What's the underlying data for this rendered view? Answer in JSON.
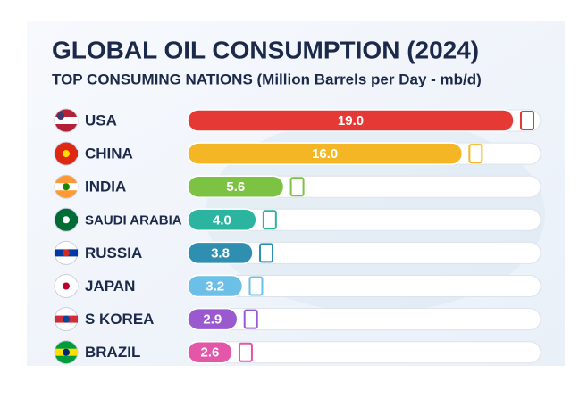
{
  "chart_data": {
    "type": "bar",
    "orientation": "horizontal",
    "title": "GLOBAL OIL CONSUMPTION (2024)",
    "subtitle": "TOP CONSUMING NATIONS (Million Barrels per Day - mb/d)",
    "categories": [
      "USA",
      "CHINA",
      "INDIA",
      "SAUDI ARABIA",
      "RUSSIA",
      "JAPAN",
      "S KOREA",
      "BRAZIL"
    ],
    "values": [
      19,
      16,
      5.6,
      4,
      3.8,
      3.2,
      2.9,
      2.6
    ],
    "value_labels": [
      "19.0",
      "16.0",
      "5.6",
      "4.0",
      "3.8",
      "3.2",
      "2.9",
      "2.6"
    ],
    "colors": [
      "#e53935",
      "#f4b625",
      "#7cc243",
      "#2bb5a0",
      "#2e8fb0",
      "#6cc0e8",
      "#9b59d0",
      "#e356a8"
    ]
  }
}
